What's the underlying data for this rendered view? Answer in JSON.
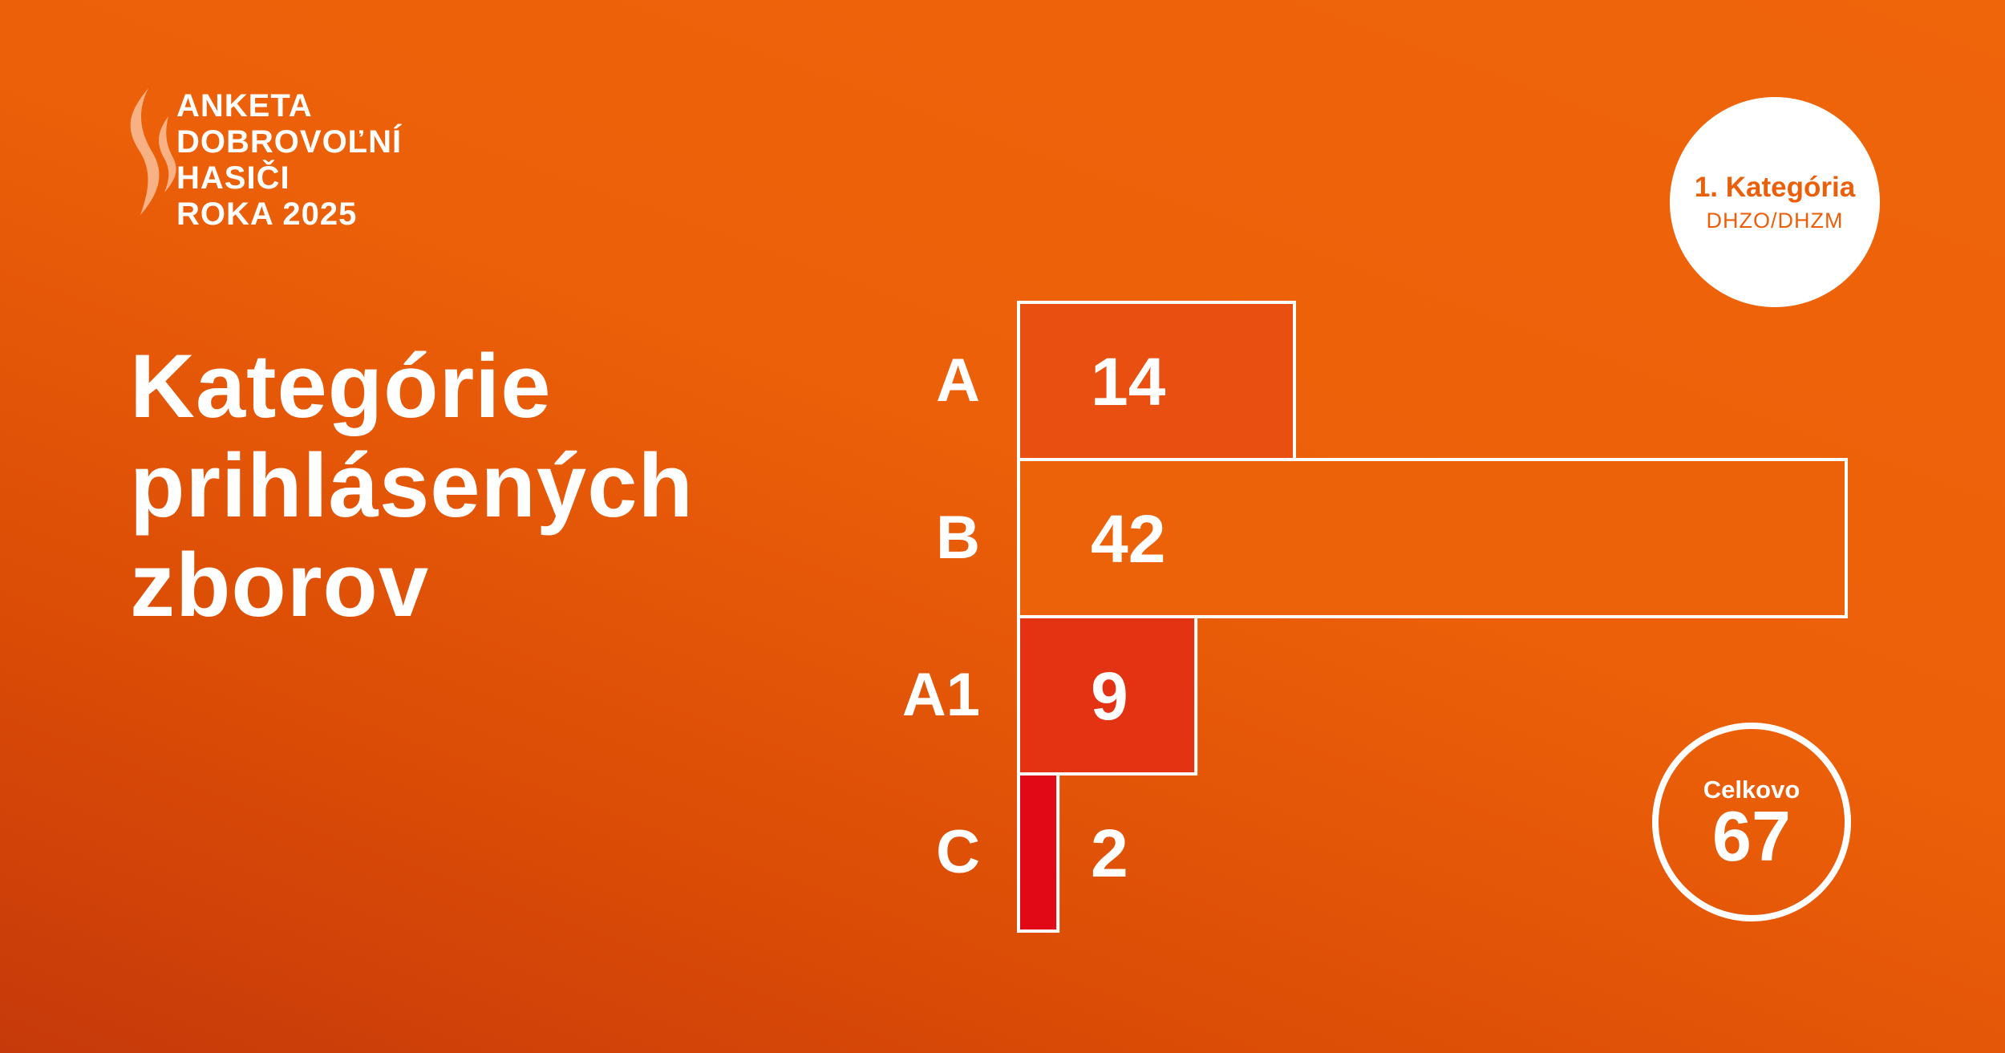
{
  "logo": {
    "lines": [
      "ANKETA",
      "DOBROVOĽNÍ",
      "HASIČI",
      "ROKA 2025"
    ]
  },
  "title": {
    "lines": [
      "Kategórie",
      "prihlásených",
      "zborov"
    ]
  },
  "category_badge": {
    "title": "1. Kategória",
    "subtitle": "DHZO/DHZM"
  },
  "total_badge": {
    "label": "Celkovo",
    "value": "67"
  },
  "colors": {
    "background": "#ec6009",
    "text": "#ffffff",
    "outline": "#ffffff"
  },
  "chart_data": {
    "type": "bar",
    "orientation": "horizontal",
    "categories": [
      "A",
      "B",
      "A1",
      "C"
    ],
    "values": [
      14,
      42,
      9,
      2
    ],
    "bar_colors": [
      "#e84f10",
      "#ec6209",
      "#e43313",
      "#e10916"
    ],
    "xlim": [
      0,
      42
    ],
    "grid": false,
    "data_labels": [
      "14",
      "42",
      "9",
      "2"
    ]
  }
}
